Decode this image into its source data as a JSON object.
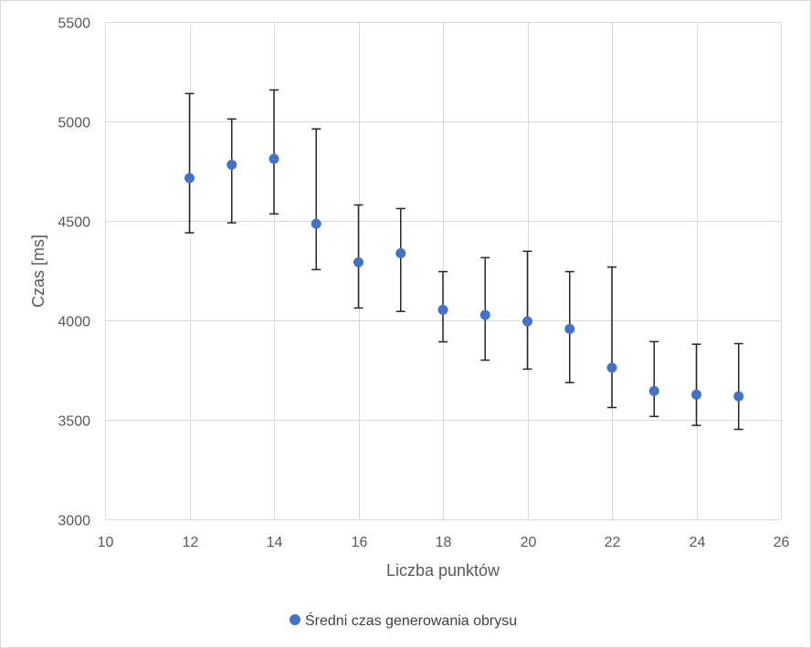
{
  "chart_data": {
    "type": "scatter",
    "title": "",
    "xlabel": "Liczba punktów",
    "ylabel": "Czas [ms]",
    "xlim": [
      10,
      26
    ],
    "ylim": [
      3000,
      5500
    ],
    "x_ticks": [
      10,
      12,
      14,
      16,
      18,
      20,
      22,
      24,
      26
    ],
    "y_ticks": [
      3000,
      3500,
      4000,
      4500,
      5000,
      5500
    ],
    "grid": true,
    "legend_position": "bottom",
    "series": [
      {
        "name": "Średni czas generowania obrysu",
        "color": "#4472c4",
        "marker": "circle",
        "points": [
          {
            "x": 12,
            "y": 4715,
            "err_low": 4440,
            "err_high": 5140
          },
          {
            "x": 13,
            "y": 4782,
            "err_low": 4490,
            "err_high": 5012
          },
          {
            "x": 14,
            "y": 4812,
            "err_low": 4535,
            "err_high": 5158
          },
          {
            "x": 15,
            "y": 4485,
            "err_low": 4255,
            "err_high": 4962
          },
          {
            "x": 16,
            "y": 4292,
            "err_low": 4062,
            "err_high": 4580
          },
          {
            "x": 17,
            "y": 4337,
            "err_low": 4045,
            "err_high": 4562
          },
          {
            "x": 18,
            "y": 4053,
            "err_low": 3892,
            "err_high": 4245
          },
          {
            "x": 19,
            "y": 4027,
            "err_low": 3800,
            "err_high": 4315
          },
          {
            "x": 20,
            "y": 3995,
            "err_low": 3755,
            "err_high": 4347
          },
          {
            "x": 21,
            "y": 3957,
            "err_low": 3687,
            "err_high": 4245
          },
          {
            "x": 22,
            "y": 3762,
            "err_low": 3562,
            "err_high": 4268
          },
          {
            "x": 23,
            "y": 3645,
            "err_low": 3517,
            "err_high": 3893
          },
          {
            "x": 24,
            "y": 3627,
            "err_low": 3472,
            "err_high": 3880
          },
          {
            "x": 25,
            "y": 3618,
            "err_low": 3452,
            "err_high": 3883
          }
        ]
      }
    ],
    "error_bar_color": "#262626",
    "grid_color": "#d9d9d9"
  }
}
